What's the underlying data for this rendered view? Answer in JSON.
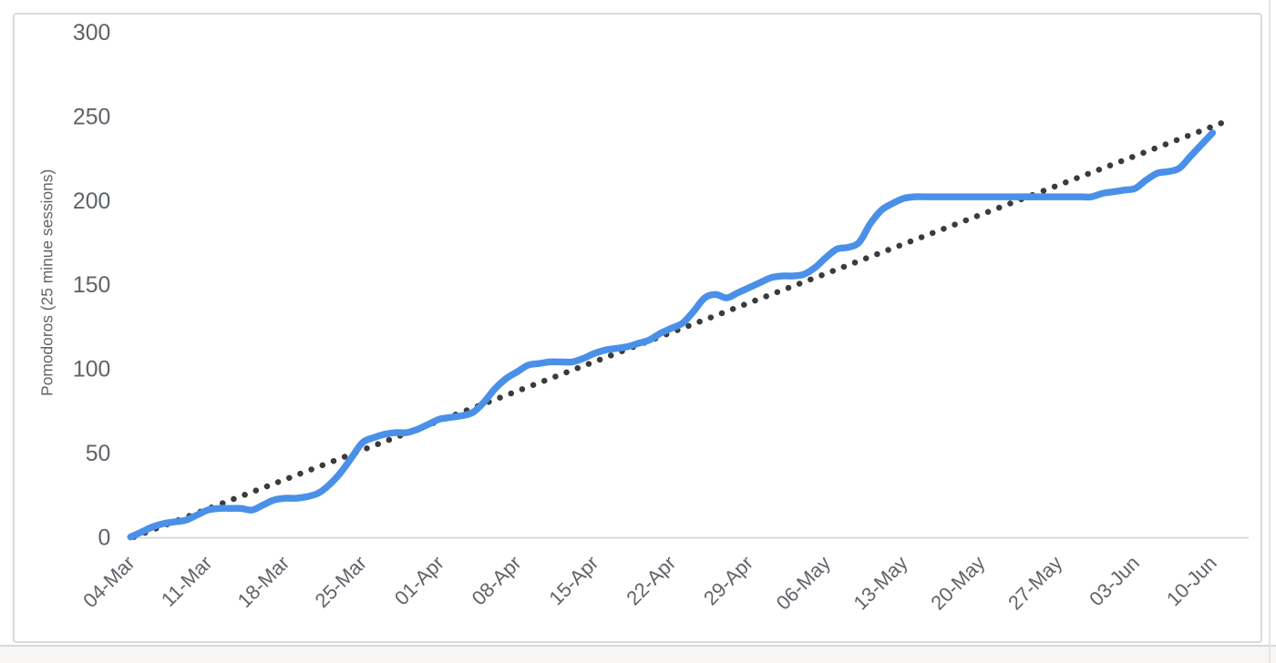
{
  "chart_data": {
    "type": "line",
    "title": "",
    "xlabel": "",
    "ylabel": "Pomodoros (25 minue sessions)",
    "ylim": [
      0,
      300
    ],
    "y_ticks": [
      0,
      50,
      100,
      150,
      200,
      250,
      300
    ],
    "x_tick_labels": [
      "04-Mar",
      "11-Mar",
      "18-Mar",
      "25-Mar",
      "01-Apr",
      "08-Apr",
      "15-Apr",
      "22-Apr",
      "29-Apr",
      "06-May",
      "13-May",
      "20-May",
      "27-May",
      "03-Jun",
      "10-Jun"
    ],
    "x_tick_interval_days": 7,
    "grid": "none",
    "legend": "none",
    "series": [
      {
        "name": "cumulative-pomodoros",
        "style": "solid-smooth",
        "color": "#4a90e8",
        "start_label": "04-Mar",
        "values_daily": [
          0,
          3,
          6,
          8,
          9,
          10,
          13,
          16,
          17,
          17,
          17,
          16,
          19,
          22,
          23,
          23,
          24,
          26,
          31,
          38,
          47,
          56,
          59,
          61,
          62,
          62,
          64,
          67,
          70,
          71,
          72,
          74,
          80,
          88,
          94,
          98,
          102,
          103,
          104,
          104,
          104,
          106,
          109,
          111,
          112,
          113,
          115,
          117,
          121,
          124,
          127,
          134,
          142,
          144,
          142,
          145,
          148,
          151,
          154,
          155,
          155,
          156,
          160,
          166,
          171,
          172,
          175,
          186,
          194,
          198,
          201,
          202,
          202,
          202,
          202,
          202,
          202,
          202,
          202,
          202,
          202,
          202,
          202,
          202,
          202,
          202,
          202,
          202,
          204,
          205,
          206,
          207,
          212,
          216,
          217,
          219,
          226,
          233,
          240
        ]
      },
      {
        "name": "linear-trendline",
        "style": "dotted",
        "color": "#3b3b3b",
        "trend": {
          "start_day": 0.3,
          "start_value": 0,
          "end_day": 99.3,
          "end_value": 247
        }
      }
    ],
    "colors": {
      "axis_line": "#d9d9d9",
      "tick_label": "#5f6368",
      "axis_title": "#5f6368"
    }
  }
}
